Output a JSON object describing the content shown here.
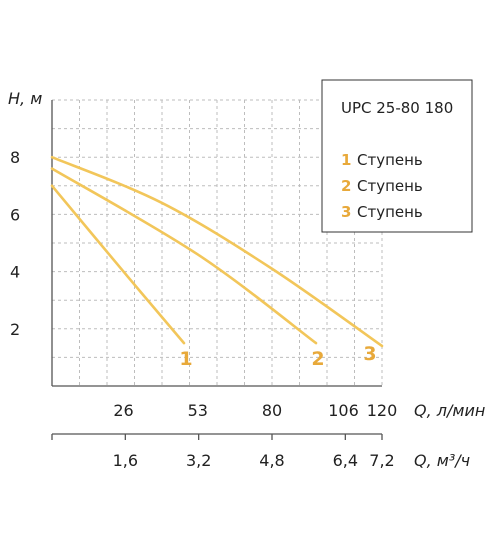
{
  "chart_data": {
    "type": "line",
    "xlabel": "Q, л/мин",
    "ylabel": "H, м",
    "xlim": [
      0,
      120
    ],
    "ylim": [
      0,
      10
    ],
    "x_ticks": [
      26,
      53,
      80,
      106,
      120
    ],
    "x_tick_labels": [
      "26",
      "53",
      "80",
      "106",
      "120"
    ],
    "y_ticks": [
      2,
      4,
      6,
      8
    ],
    "y_tick_labels": [
      "2",
      "4",
      "6",
      "8"
    ],
    "secondary_axis": {
      "label": "Q, м³/ч",
      "ticks": [
        1.6,
        3.2,
        4.8,
        6.4,
        7.2
      ],
      "tick_labels": [
        "1,6",
        "3,2",
        "4,8",
        "6,4",
        "7,2"
      ]
    },
    "grid": true,
    "series": [
      {
        "name": "1 Ступень",
        "label": "1",
        "x": [
          0,
          26,
          48
        ],
        "y": [
          7.0,
          4.0,
          1.5
        ]
      },
      {
        "name": "2 Ступень",
        "label": "2",
        "x": [
          0,
          53,
          96
        ],
        "y": [
          7.6,
          4.6,
          1.5
        ]
      },
      {
        "name": "3 Ступень",
        "label": "3",
        "x": [
          0,
          40,
          80,
          120
        ],
        "y": [
          8.0,
          6.4,
          4.1,
          1.4
        ]
      }
    ],
    "legend": {
      "title": "UPC 25-80 180",
      "placement": "top-right",
      "entries": [
        {
          "num": "1",
          "text": "Ступень"
        },
        {
          "num": "2",
          "text": "Ступень"
        },
        {
          "num": "3",
          "text": "Ступень"
        }
      ]
    },
    "colors": {
      "curve": "#F2C65A",
      "label": "#E8A93A",
      "grid": "#BDBDBD",
      "axis": "#555555"
    }
  }
}
